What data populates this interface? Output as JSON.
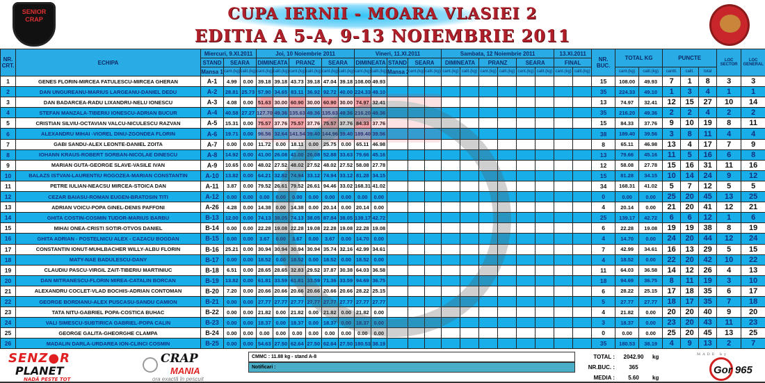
{
  "header": {
    "title_line1": "CUPA IERNII - MOARA VLASIEI 2",
    "title_line2": "EDITIA  A 5-A, 9-13 NOIEMBRIE 2011",
    "logo_left": "SENIOR CRAP",
    "logo_right": "LACUL MOARA VLASIEI 2"
  },
  "columns": {
    "nr": "NR. CRT.",
    "team": "ECHIPA",
    "day1": "Miercuri, 9.XI.2011",
    "day2": "Joi, 10 Noiembrie 2011",
    "day3": "Vineri, 11.XI.2011",
    "day4": "Sambata, 12 Noiembrie 2011",
    "day5": "13.XI.2011",
    "stand1": "STAND",
    "mansa1": "Mansa 1",
    "stand2": "STAND",
    "mansa2": "Mansa 2",
    "dimineata": "DIMINEATA",
    "pranz": "PRANZ",
    "seara": "SEARA",
    "final": "FINAL",
    "nr_buc": "NR. BUC.",
    "total_kg": "TOTAL KG",
    "puncte": "PUNCTE",
    "loc_sector": "LOC SECTOR",
    "loc_general": "LOC GENERAL",
    "cant": "cant.(kg)",
    "calit": "calit.(kg)",
    "p_cant": "cantit.",
    "p_calit": "calit.",
    "p_total": "total"
  },
  "rows": [
    {
      "nr": "1",
      "team": "GENES FLORIN-MIRCEA FATULESCU-MIRCEA GHERAN",
      "stand": "A-1",
      "values": [
        "4.99",
        "0.00",
        "39.18",
        "39.18",
        "43.73",
        "39.18",
        "47.04",
        "39.18",
        "108.00",
        "49.93"
      ],
      "nr_buc": "15",
      "total": [
        "108.00",
        "49.93"
      ],
      "puncte": [
        "7",
        "1",
        "8"
      ],
      "loc_sector": "3",
      "loc_general": "3"
    },
    {
      "nr": "2",
      "team": "DAN UNGUREANU-MARIUS LARGEANU-DANIEL DEDU",
      "stand": "A-2",
      "values": [
        "28.81",
        "25.73",
        "57.90",
        "34.65",
        "83.11",
        "36.92",
        "92.72",
        "40.00",
        "224.33",
        "49.10"
      ],
      "nr_buc": "35",
      "total": [
        "224.33",
        "49.10"
      ],
      "puncte": [
        "1",
        "3",
        "4"
      ],
      "loc_sector": "1",
      "loc_general": "1"
    },
    {
      "nr": "3",
      "team": "DAN BADARCEA-RADU LIXANDRU-NELU IONESCU",
      "stand": "A-3",
      "values": [
        "4.08",
        "0.00",
        "51.63",
        "30.00",
        "60.90",
        "30.00",
        "60.90",
        "30.00",
        "74.97",
        "32.41"
      ],
      "nr_buc": "13",
      "total": [
        "74.97",
        "32.41"
      ],
      "puncte": [
        "12",
        "15",
        "27"
      ],
      "loc_sector": "10",
      "loc_general": "14"
    },
    {
      "nr": "4",
      "team": "STEFAN MANZALA-TIBERIU IONESCU-ADRIAN BUCUR",
      "stand": "A-4",
      "values": [
        "40.58",
        "27.27",
        "127.70",
        "49.36",
        "135.63",
        "49.36",
        "135.63",
        "49.36",
        "216.20",
        "49.36"
      ],
      "nr_buc": "35",
      "total": [
        "216.20",
        "49.36"
      ],
      "puncte": [
        "2",
        "2",
        "4"
      ],
      "loc_sector": "2",
      "loc_general": "2"
    },
    {
      "nr": "5",
      "team": "CRISTIAN SILVIU-OCTAVIAN VALCU-NICULESCU RAZVAN",
      "stand": "A-5",
      "values": [
        "15.31",
        "0.00",
        "75.57",
        "37.76",
        "75.57",
        "37.76",
        "75.57",
        "37.76",
        "84.33",
        "37.76"
      ],
      "nr_buc": "15",
      "total": [
        "84.33",
        "37.76"
      ],
      "puncte": [
        "9",
        "10",
        "19"
      ],
      "loc_sector": "8",
      "loc_general": "11"
    },
    {
      "nr": "6",
      "team": "ALEXANDRU MIHAI -VIOREL DINU-ZGONDEA FLORIN",
      "stand": "A-6",
      "values": [
        "19.71",
        "0.00",
        "96.56",
        "32.64",
        "141.54",
        "39.40",
        "144.96",
        "39.40",
        "189.40",
        "39.56"
      ],
      "nr_buc": "38",
      "total": [
        "189.40",
        "39.56"
      ],
      "puncte": [
        "3",
        "8",
        "11"
      ],
      "loc_sector": "4",
      "loc_general": "4"
    },
    {
      "nr": "7",
      "team": "GABI SANDU-ALEX LEONTE-DANIEL ZOITA",
      "stand": "A-7",
      "values": [
        "0.00",
        "0.00",
        "11.72",
        "0.00",
        "18.11",
        "0.00",
        "25.75",
        "0.00",
        "65.11",
        "46.98"
      ],
      "nr_buc": "8",
      "total": [
        "65.11",
        "46.98"
      ],
      "puncte": [
        "13",
        "4",
        "17"
      ],
      "loc_sector": "7",
      "loc_general": "9"
    },
    {
      "nr": "8",
      "team": "IOHANN KRAUS-ROBERT SORBAN-NICOLAE DINESCU",
      "stand": "A-8",
      "values": [
        "14.92",
        "0.00",
        "41.00",
        "26.08",
        "41.00",
        "26.08",
        "52.88",
        "33.63",
        "79.66",
        "45.16"
      ],
      "nr_buc": "13",
      "total": [
        "79.66",
        "45.16"
      ],
      "puncte": [
        "11",
        "5",
        "16"
      ],
      "loc_sector": "6",
      "loc_general": "8"
    },
    {
      "nr": "9",
      "team": "MARIAN GUTA-GEORGE SLAVE-VASILE IVAN",
      "stand": "A-9",
      "values": [
        "10.65",
        "0.00",
        "48.02",
        "27.52",
        "48.02",
        "27.52",
        "48.02",
        "27.52",
        "58.08",
        "27.78"
      ],
      "nr_buc": "12",
      "total": [
        "58.08",
        "27.78"
      ],
      "puncte": [
        "15",
        "16",
        "31"
      ],
      "loc_sector": "11",
      "loc_general": "16"
    },
    {
      "nr": "10",
      "team": "BALAZS ISTVAN-LAURENTIU ROGOZEA-MARIAN CONSTANTIN",
      "stand": "A-10",
      "values": [
        "13.82",
        "0.00",
        "64.21",
        "32.82",
        "74.94",
        "33.12",
        "74.94",
        "33.12",
        "81.28",
        "34.15"
      ],
      "nr_buc": "15",
      "total": [
        "81.28",
        "34.15"
      ],
      "puncte": [
        "10",
        "14",
        "24"
      ],
      "loc_sector": "9",
      "loc_general": "12"
    },
    {
      "nr": "11",
      "team": "PETRE IULIAN-NEACSU MIRCEA-STOICA DAN",
      "stand": "A-11",
      "values": [
        "3.87",
        "0.00",
        "79.52",
        "26.61",
        "79.52",
        "26.61",
        "94.46",
        "33.02",
        "168.31",
        "41.02"
      ],
      "nr_buc": "34",
      "total": [
        "168.31",
        "41.02"
      ],
      "puncte": [
        "5",
        "7",
        "12"
      ],
      "loc_sector": "5",
      "loc_general": "5"
    },
    {
      "nr": "12",
      "team": "CEZAR BAIASU-ROMAN EUGEN-BRATOSIN TITI",
      "stand": "A-12",
      "values": [
        "0.00",
        "0.00",
        "0.00",
        "0.00",
        "0.00",
        "0.00",
        "0.00",
        "0.00",
        "0.00",
        "0.00"
      ],
      "nr_buc": "0",
      "total": [
        "0.00",
        "0.00"
      ],
      "puncte": [
        "25",
        "20",
        "45"
      ],
      "loc_sector": "13",
      "loc_general": "25"
    },
    {
      "nr": "13",
      "team": "ADRIAN VOICU-POPA GINEL-DENIS PAFFONI",
      "stand": "A-26",
      "values": [
        "4.28",
        "0.00",
        "14.38",
        "0.00",
        "14.38",
        "0.00",
        "20.14",
        "0.00",
        "20.14",
        "0.00"
      ],
      "nr_buc": "4",
      "total": [
        "20.14",
        "0.00"
      ],
      "puncte": [
        "21",
        "20",
        "41"
      ],
      "loc_sector": "12",
      "loc_general": "21"
    },
    {
      "nr": "14",
      "team": "GHITA COSTIN-COSMIN TUDOR-MARIUS BARBU",
      "stand": "B-13",
      "values": [
        "12.00",
        "0.00",
        "74.13",
        "38.05",
        "74.13",
        "38.05",
        "87.84",
        "38.05",
        "139.17",
        "42.72"
      ],
      "nr_buc": "25",
      "total": [
        "139.17",
        "42.72"
      ],
      "puncte": [
        "6",
        "6",
        "12"
      ],
      "loc_sector": "1",
      "loc_general": "6"
    },
    {
      "nr": "15",
      "team": "MIHAI ONEA-CRISTI SOTIR-OTVOS DANIEL",
      "stand": "B-14",
      "values": [
        "0.00",
        "0.00",
        "22.28",
        "19.08",
        "22.28",
        "19.08",
        "22.28",
        "19.08",
        "22.28",
        "19.08"
      ],
      "nr_buc": "6",
      "total": [
        "22.28",
        "19.08"
      ],
      "puncte": [
        "19",
        "19",
        "38"
      ],
      "loc_sector": "8",
      "loc_general": "19"
    },
    {
      "nr": "16",
      "team": "GHITA ADRIAN - POSTELNICU ALEX - CAZACU BOGDAN",
      "stand": "B-15",
      "values": [
        "0.00",
        "0.00",
        "3.67",
        "0.00",
        "3.67",
        "0.00",
        "3.67",
        "0.00",
        "14.70",
        "0.00"
      ],
      "nr_buc": "4",
      "total": [
        "14.70",
        "0.00"
      ],
      "puncte": [
        "24",
        "20",
        "44"
      ],
      "loc_sector": "12",
      "loc_general": "24"
    },
    {
      "nr": "17",
      "team": "CONSTANTIN IONUT-MUHLBACHER WILLY-ALBU FLORIN",
      "stand": "B-16",
      "values": [
        "25.21",
        "0.00",
        "30.94",
        "30.94",
        "30.94",
        "30.94",
        "35.74",
        "32.16",
        "42.99",
        "34.61"
      ],
      "nr_buc": "7",
      "total": [
        "42.99",
        "34.61"
      ],
      "puncte": [
        "16",
        "13",
        "29"
      ],
      "loc_sector": "5",
      "loc_general": "15"
    },
    {
      "nr": "18",
      "team": "MATY-NAE BADULESCU-DANY",
      "stand": "B-17",
      "values": [
        "0.00",
        "0.00",
        "18.52",
        "0.00",
        "18.52",
        "0.00",
        "18.52",
        "0.00",
        "18.52",
        "0.00"
      ],
      "nr_buc": "4",
      "total": [
        "18.52",
        "0.00"
      ],
      "puncte": [
        "22",
        "20",
        "42"
      ],
      "loc_sector": "10",
      "loc_general": "22"
    },
    {
      "nr": "19",
      "team": "CLAUDIU PASCU-VIRGIL ZAIT-TIBERIU MARTINIUC",
      "stand": "B-18",
      "values": [
        "6.51",
        "0.00",
        "28.65",
        "28.65",
        "32.83",
        "29.52",
        "37.87",
        "30.38",
        "64.03",
        "36.58"
      ],
      "nr_buc": "11",
      "total": [
        "64.03",
        "36.58"
      ],
      "puncte": [
        "14",
        "12",
        "26"
      ],
      "loc_sector": "4",
      "loc_general": "13"
    },
    {
      "nr": "20",
      "team": "DAN MITRANESCU-FLORIN MIREA-CATALIN BORCAN",
      "stand": "B-19",
      "values": [
        "13.82",
        "0.00",
        "61.81",
        "33.59",
        "61.81",
        "33.59",
        "71.36",
        "33.59",
        "94.69",
        "36.75"
      ],
      "nr_buc": "18",
      "total": [
        "94.69",
        "36.75"
      ],
      "puncte": [
        "8",
        "11",
        "19"
      ],
      "loc_sector": "3",
      "loc_general": "10"
    },
    {
      "nr": "21",
      "team": "ALEXANDRU COCLET-VLAD BOCHIS-ADRIAN CONTOMAN",
      "stand": "B-20",
      "values": [
        "7.20",
        "0.00",
        "20.66",
        "20.66",
        "20.66",
        "20.66",
        "20.66",
        "20.66",
        "28.22",
        "25.15"
      ],
      "nr_buc": "6",
      "total": [
        "28.22",
        "25.15"
      ],
      "puncte": [
        "17",
        "18",
        "35"
      ],
      "loc_sector": "6",
      "loc_general": "17"
    },
    {
      "nr": "22",
      "team": "GEORGE BORDIANU-ALEX PUSCASU-SANDU CAMION",
      "stand": "B-21",
      "values": [
        "0.00",
        "0.00",
        "27.77",
        "27.77",
        "27.77",
        "27.77",
        "27.77",
        "27.77",
        "27.77",
        "27.77"
      ],
      "nr_buc": "5",
      "total": [
        "27.77",
        "27.77"
      ],
      "puncte": [
        "18",
        "17",
        "35"
      ],
      "loc_sector": "7",
      "loc_general": "18"
    },
    {
      "nr": "23",
      "team": "TATA NITU-GABRIEL POPA-COSTICA BUHAC",
      "stand": "B-22",
      "values": [
        "0.00",
        "0.00",
        "21.82",
        "0.00",
        "21.82",
        "0.00",
        "21.82",
        "0.00",
        "21.82",
        "0.00"
      ],
      "nr_buc": "4",
      "total": [
        "21.82",
        "0.00"
      ],
      "puncte": [
        "20",
        "20",
        "40"
      ],
      "loc_sector": "9",
      "loc_general": "20"
    },
    {
      "nr": "24",
      "team": "VALI SIMESCU-SUBTIRICA GABRIEL-POPA CALIN",
      "stand": "B-23",
      "values": [
        "0.00",
        "0.00",
        "18.37",
        "0.00",
        "18.37",
        "0.00",
        "18.37",
        "0.00",
        "18.37",
        "0.00"
      ],
      "nr_buc": "3",
      "total": [
        "18.37",
        "0.00"
      ],
      "puncte": [
        "23",
        "20",
        "43"
      ],
      "loc_sector": "11",
      "loc_general": "23"
    },
    {
      "nr": "25",
      "team": "GEORGE GALITA-GHEORGHE CLAMPA",
      "stand": "B-24",
      "values": [
        "0.00",
        "0.00",
        "0.00",
        "0.00",
        "0.00",
        "0.00",
        "0.00",
        "0.00",
        "0.00",
        "0.00"
      ],
      "nr_buc": "0",
      "total": [
        "0.00",
        "0.00"
      ],
      "puncte": [
        "25",
        "20",
        "45"
      ],
      "loc_sector": "13",
      "loc_general": "25"
    },
    {
      "nr": "26",
      "team": "MADALIN DARLA-URDAREA ION-CLINCI COSMIN",
      "stand": "B-25",
      "values": [
        "0.00",
        "0.00",
        "54.63",
        "27.50",
        "62.64",
        "27.50",
        "62.64",
        "27.50",
        "180.53",
        "38.19"
      ],
      "nr_buc": "35",
      "total": [
        "180.53",
        "38.19"
      ],
      "puncte": [
        "4",
        "9",
        "13"
      ],
      "loc_sector": "2",
      "loc_general": "7"
    }
  ],
  "footer": {
    "sponsor1_a": "SENZ",
    "sponsor1_b": "R",
    "sponsor1_c": "PLANET",
    "sponsor1_slogan": "NADĂ PESTE TOT",
    "sponsor2_a": "CRAP",
    "sponsor2_b": "MANIA",
    "sponsor2_slogan": "ora exactă în pescuit",
    "cmmc": "CMMC :  11.88 kg - stand A-8",
    "notificari": "Notificari :",
    "total_label": "TOTAL :",
    "total_value": "2042.90",
    "total_unit": "kg",
    "nrbuc_label": "NR.BUC. :",
    "nrbuc_value": "365",
    "media_label": "MEDIA :",
    "media_value": "5.60",
    "media_unit": "kg",
    "made_by": "MADE by",
    "author": "Gor 965"
  },
  "colors": {
    "row_blue": "#17aee9",
    "header_blue": "#29ace6",
    "title_red": "#b0202a"
  }
}
